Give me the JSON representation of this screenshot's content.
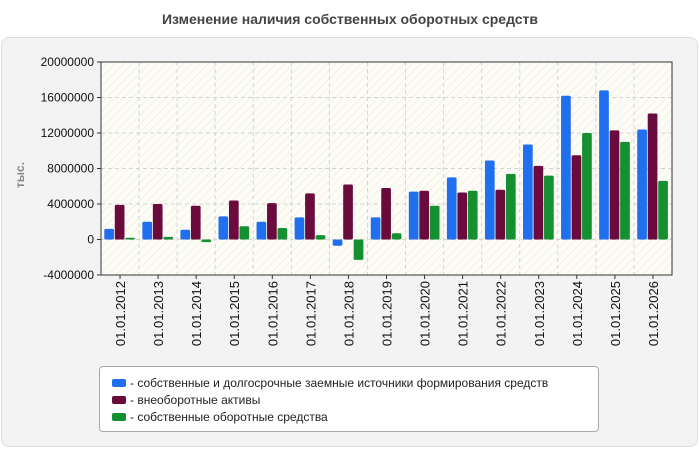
{
  "chart_data": {
    "type": "bar",
    "title": "Изменение наличия собственных оборотных средств",
    "ylabel": "тыс.",
    "xlabel": "",
    "ylim": [
      -4000000,
      20000000
    ],
    "yticks": [
      -4000000,
      0,
      4000000,
      8000000,
      12000000,
      16000000,
      20000000
    ],
    "grid": true,
    "legend_position": "bottom",
    "categories": [
      "01.01.2012",
      "01.01.2013",
      "01.01.2014",
      "01.01.2015",
      "01.01.2016",
      "01.01.2017",
      "01.01.2018",
      "01.01.2019",
      "01.01.2020",
      "01.01.2021",
      "01.01.2022",
      "01.01.2023",
      "01.01.2024",
      "01.01.2025",
      "01.01.2026"
    ],
    "series": [
      {
        "name": "- собственные и долгосрочные заемные источники формирования средств",
        "color": "#1f6fef",
        "values": [
          1200000,
          2000000,
          1100000,
          2600000,
          2000000,
          2500000,
          -700000,
          2500000,
          5400000,
          7000000,
          8900000,
          10700000,
          16200000,
          16800000,
          12400000
        ]
      },
      {
        "name": "- внеоборотные активы",
        "color": "#6b0a3c",
        "values": [
          3900000,
          4000000,
          3800000,
          4400000,
          4100000,
          5200000,
          6200000,
          5800000,
          5500000,
          5300000,
          5600000,
          8300000,
          9500000,
          12300000,
          14200000
        ]
      },
      {
        "name": "- собственные оборотные средства",
        "color": "#149030",
        "values": [
          200000,
          300000,
          -300000,
          1500000,
          1300000,
          500000,
          -2300000,
          700000,
          3800000,
          5500000,
          7400000,
          7200000,
          12000000,
          11000000,
          6600000
        ]
      }
    ]
  }
}
